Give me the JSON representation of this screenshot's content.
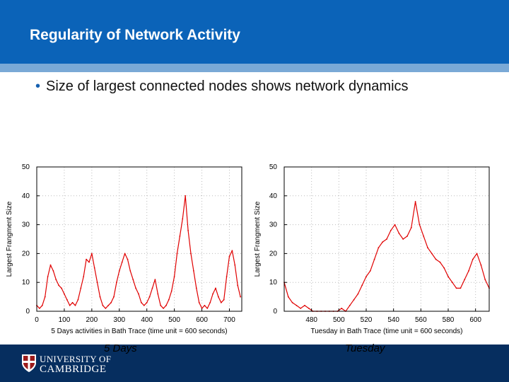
{
  "slide": {
    "title": "Regularity of Network Activity",
    "bullet": "Size of largest connected nodes shows network dynamics"
  },
  "footer": {
    "logo_line1": "UNIVERSITY OF",
    "logo_line2": "CAMBRIDGE",
    "caption_left": "5 Days",
    "caption_right": "Tuesday"
  },
  "colors": {
    "header": "#0b63b8",
    "band": "#7aa9d6",
    "footer": "#062e5f",
    "series": "#e00000"
  },
  "chart_data": [
    {
      "type": "line",
      "xlabel": "5 Days activities in Bath Trace (time unit = 600 seconds)",
      "ylabel": "Largest Frangment Size",
      "xlim": [
        0,
        745
      ],
      "ylim": [
        0,
        50
      ],
      "xticks": [
        0,
        100,
        200,
        300,
        400,
        500,
        600,
        700
      ],
      "yticks": [
        0,
        10,
        20,
        30,
        40,
        50
      ],
      "grid": true,
      "series": [
        {
          "x": [
            0,
            10,
            20,
            30,
            40,
            50,
            60,
            70,
            80,
            90,
            100,
            110,
            120,
            130,
            140,
            150,
            160,
            170,
            180,
            190,
            200,
            210,
            220,
            230,
            240,
            250,
            260,
            270,
            280,
            290,
            300,
            310,
            320,
            330,
            340,
            350,
            360,
            370,
            380,
            390,
            400,
            410,
            420,
            430,
            440,
            450,
            460,
            470,
            480,
            490,
            500,
            510,
            520,
            530,
            540,
            550,
            560,
            570,
            580,
            590,
            600,
            610,
            620,
            630,
            640,
            650,
            660,
            670,
            680,
            690,
            700,
            710,
            720,
            730,
            740
          ],
          "y": [
            2,
            1,
            2,
            5,
            12,
            16,
            14,
            11,
            9,
            8,
            6,
            4,
            2,
            3,
            2,
            4,
            8,
            12,
            18,
            17,
            20,
            15,
            10,
            5,
            2,
            1,
            2,
            3,
            5,
            10,
            14,
            17,
            20,
            18,
            14,
            11,
            8,
            6,
            3,
            2,
            3,
            5,
            8,
            11,
            6,
            2,
            1,
            2,
            4,
            7,
            12,
            20,
            26,
            32,
            40,
            28,
            20,
            14,
            8,
            3,
            1,
            2,
            1,
            3,
            6,
            8,
            5,
            3,
            4,
            12,
            19,
            21,
            16,
            9,
            5
          ]
        }
      ]
    },
    {
      "type": "line",
      "xlabel": "Tuesday in Bath Trace (time unit = 600 seconds)",
      "ylabel": "Largest Frangment Size",
      "xlim": [
        460,
        610
      ],
      "ylim": [
        0,
        50
      ],
      "xticks": [
        480,
        500,
        520,
        540,
        560,
        580,
        600
      ],
      "yticks": [
        0,
        10,
        20,
        30,
        40,
        50
      ],
      "grid": true,
      "series": [
        {
          "x": [
            460,
            463,
            466,
            469,
            472,
            475,
            478,
            481,
            484,
            487,
            490,
            493,
            496,
            499,
            502,
            505,
            508,
            511,
            514,
            517,
            520,
            523,
            526,
            529,
            532,
            535,
            538,
            541,
            544,
            547,
            550,
            553,
            556,
            559,
            562,
            565,
            568,
            571,
            574,
            577,
            580,
            583,
            586,
            589,
            592,
            595,
            598,
            601,
            604,
            607,
            610
          ],
          "y": [
            10,
            5,
            3,
            2,
            1,
            2,
            1,
            0,
            0,
            0,
            0,
            0,
            0,
            0,
            1,
            0,
            2,
            4,
            6,
            9,
            12,
            14,
            18,
            22,
            24,
            25,
            28,
            30,
            27,
            25,
            26,
            29,
            38,
            30,
            26,
            22,
            20,
            18,
            17,
            15,
            12,
            10,
            8,
            8,
            11,
            14,
            18,
            20,
            16,
            11,
            8
          ]
        }
      ]
    }
  ]
}
